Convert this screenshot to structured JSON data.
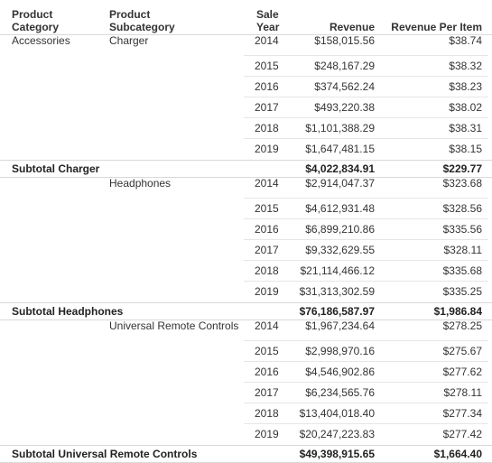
{
  "header": {
    "product_category": "Product\nCategory",
    "product_subcategory": "Product\nSubcategory",
    "sale_year": "Sale\nYear",
    "revenue": "Revenue",
    "revenue_per_item": "Revenue Per Item"
  },
  "groups": [
    {
      "category": "Accessories",
      "subcategory": "Charger",
      "rows": [
        {
          "year": "2014",
          "revenue": "$158,015.56",
          "rpi": "$38.74"
        },
        {
          "year": "2015",
          "revenue": "$248,167.29",
          "rpi": "$38.32"
        },
        {
          "year": "2016",
          "revenue": "$374,562.24",
          "rpi": "$38.23"
        },
        {
          "year": "2017",
          "revenue": "$493,220.38",
          "rpi": "$38.02"
        },
        {
          "year": "2018",
          "revenue": "$1,101,388.29",
          "rpi": "$38.31"
        },
        {
          "year": "2019",
          "revenue": "$1,647,481.15",
          "rpi": "$38.15"
        }
      ],
      "subtotal": {
        "label": "Subtotal Charger",
        "revenue": "$4,022,834.91",
        "rpi": "$229.77"
      }
    },
    {
      "category": "",
      "subcategory": "Headphones",
      "rows": [
        {
          "year": "2014",
          "revenue": "$2,914,047.37",
          "rpi": "$323.68"
        },
        {
          "year": "2015",
          "revenue": "$4,612,931.48",
          "rpi": "$328.56"
        },
        {
          "year": "2016",
          "revenue": "$6,899,210.86",
          "rpi": "$335.56"
        },
        {
          "year": "2017",
          "revenue": "$9,332,629.55",
          "rpi": "$328.11"
        },
        {
          "year": "2018",
          "revenue": "$21,114,466.12",
          "rpi": "$335.68"
        },
        {
          "year": "2019",
          "revenue": "$31,313,302.59",
          "rpi": "$335.25"
        }
      ],
      "subtotal": {
        "label": "Subtotal Headphones",
        "revenue": "$76,186,587.97",
        "rpi": "$1,986.84"
      }
    },
    {
      "category": "",
      "subcategory": "Universal Remote Controls",
      "rows": [
        {
          "year": "2014",
          "revenue": "$1,967,234.64",
          "rpi": "$278.25"
        },
        {
          "year": "2015",
          "revenue": "$2,998,970.16",
          "rpi": "$275.67"
        },
        {
          "year": "2016",
          "revenue": "$4,546,902.86",
          "rpi": "$277.62"
        },
        {
          "year": "2017",
          "revenue": "$6,234,565.76",
          "rpi": "$278.11"
        },
        {
          "year": "2018",
          "revenue": "$13,404,018.40",
          "rpi": "$277.34"
        },
        {
          "year": "2019",
          "revenue": "$20,247,223.83",
          "rpi": "$277.42"
        }
      ],
      "subtotal": {
        "label": "Subtotal Universal Remote Controls",
        "revenue": "$49,398,915.65",
        "rpi": "$1,664.40"
      }
    }
  ]
}
